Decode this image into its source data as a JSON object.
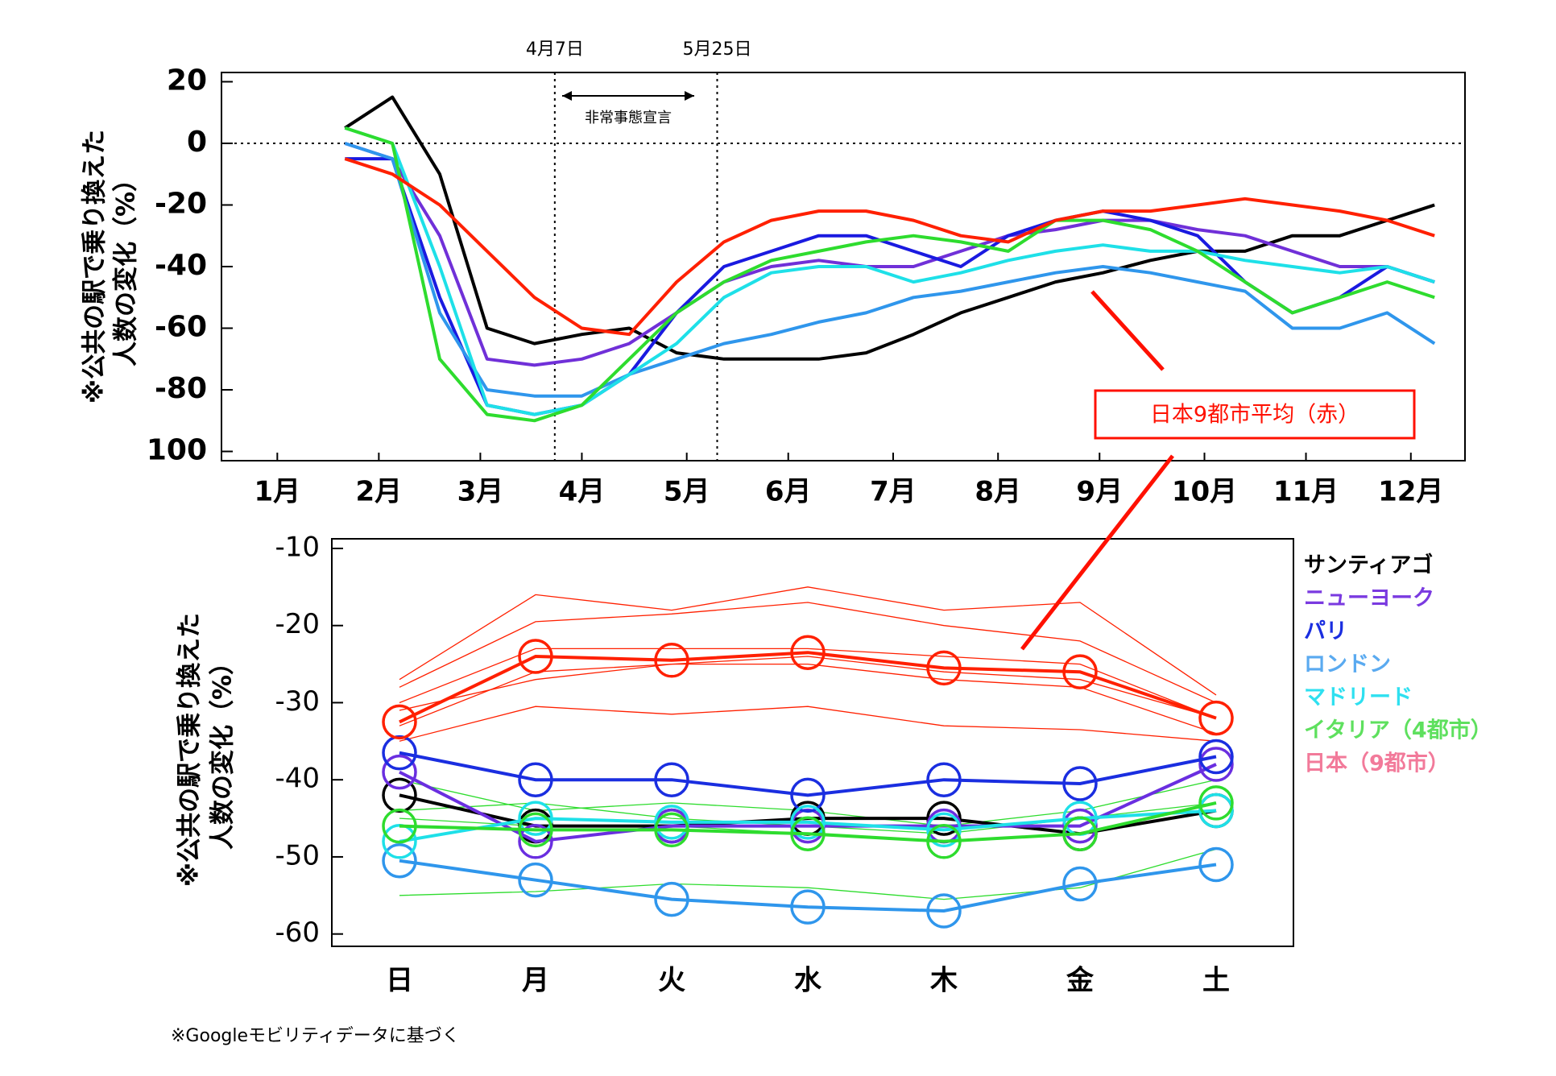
{
  "chart_data": [
    {
      "type": "line",
      "y_label": [
        "※公共の駅で乗り換えた",
        "人数の変化（%）"
      ],
      "xlim": [
        -1.5,
        366
      ],
      "xticks": [
        {
          "value": 15,
          "label": "1月"
        },
        {
          "value": 45,
          "label": "2月"
        },
        {
          "value": 75,
          "label": "3月"
        },
        {
          "value": 105,
          "label": "4月"
        },
        {
          "value": 136,
          "label": "5月"
        },
        {
          "value": 166,
          "label": "6月"
        },
        {
          "value": 197,
          "label": "7月"
        },
        {
          "value": 228,
          "label": "8月"
        },
        {
          "value": 258,
          "label": "9月"
        },
        {
          "value": 289,
          "label": "10月"
        },
        {
          "value": 319,
          "label": "11月"
        },
        {
          "value": 350,
          "label": "12月"
        }
      ],
      "ylim": [
        -103,
        23
      ],
      "yticks": [
        20,
        0,
        -20,
        -40,
        -60,
        -80,
        {
          "value": -100,
          "label": "100"
        }
      ],
      "reference_y": 0,
      "annotations": [
        {
          "text": "4月7日",
          "x": 97
        },
        {
          "text": "5月25日",
          "x": 145
        }
      ],
      "span_label": "非常事態宣言",
      "callout": "日本9都市平均（赤）",
      "x": [
        35,
        49,
        63,
        77,
        91,
        105,
        119,
        133,
        147,
        161,
        175,
        189,
        203,
        217,
        231,
        245,
        259,
        273,
        287,
        301,
        315,
        329,
        343,
        357
      ],
      "series": [
        {
          "color": "#000000",
          "values": [
            5,
            15,
            -10,
            -60,
            -65,
            -62,
            -60,
            -68,
            -70,
            -70,
            -70,
            -68,
            -62,
            -55,
            -50,
            -45,
            -42,
            -38,
            -35,
            -35,
            -30,
            -30,
            -25,
            -20
          ]
        },
        {
          "color": "#7030d8",
          "values": [
            0,
            -5,
            -30,
            -70,
            -72,
            -70,
            -65,
            -55,
            -45,
            -40,
            -38,
            -40,
            -40,
            -35,
            -30,
            -28,
            -25,
            -25,
            -28,
            -30,
            -35,
            -40,
            -40,
            -45
          ]
        },
        {
          "color": "#1a1ae0",
          "values": [
            -5,
            -5,
            -50,
            -85,
            -88,
            -85,
            -75,
            -55,
            -40,
            -35,
            -30,
            -30,
            -35,
            -40,
            -30,
            -25,
            -22,
            -25,
            -30,
            -45,
            -55,
            -50,
            -40,
            -45
          ]
        },
        {
          "color": "#2f96ec",
          "values": [
            0,
            -5,
            -55,
            -80,
            -82,
            -82,
            -75,
            -70,
            -65,
            -62,
            -58,
            -55,
            -50,
            -48,
            -45,
            -42,
            -40,
            -42,
            -45,
            -48,
            -60,
            -60,
            -55,
            -65
          ]
        },
        {
          "color": "#1ee0e8",
          "values": [
            5,
            0,
            -40,
            -85,
            -88,
            -85,
            -75,
            -65,
            -50,
            -42,
            -40,
            -40,
            -45,
            -42,
            -38,
            -35,
            -33,
            -35,
            -35,
            -38,
            -40,
            -42,
            -40,
            -45
          ]
        },
        {
          "color": "#2edc2e",
          "values": [
            5,
            0,
            -70,
            -88,
            -90,
            -85,
            -70,
            -55,
            -45,
            -38,
            -35,
            -32,
            -30,
            -32,
            -35,
            -25,
            -25,
            -28,
            -35,
            -45,
            -55,
            -50,
            -45,
            -50
          ]
        },
        {
          "color": "#ff2000",
          "values": [
            -5,
            -10,
            -20,
            -35,
            -50,
            -60,
            -62,
            -45,
            -32,
            -25,
            -22,
            -22,
            -25,
            -30,
            -32,
            -25,
            -22,
            -22,
            -20,
            -18,
            -20,
            -22,
            -25,
            -30
          ]
        }
      ]
    },
    {
      "type": "line",
      "y_label": [
        "※公共の駅で乗り換えた",
        "人数の変化（%）"
      ],
      "categories": [
        "日",
        "月",
        "火",
        "水",
        "木",
        "金",
        "土"
      ],
      "ylim": [
        -61.6,
        -8.75
      ],
      "yticks": [
        -10,
        -20,
        -30,
        -40,
        -50,
        -60
      ],
      "footnote": "※Googleモビリティデータに基づく",
      "series": [
        {
          "name": "サンティアゴ",
          "color": "#000000",
          "legend_color": "#000000",
          "values": [
            -42,
            -46,
            -46,
            -45,
            -45,
            -47,
            -44
          ]
        },
        {
          "name": "ニューヨーク",
          "color": "#6a2ee0",
          "legend_color": "#7a3ae0",
          "values": [
            -39,
            -48,
            -46,
            -46,
            -46,
            -46,
            -38
          ]
        },
        {
          "name": "パリ",
          "color": "#1a2ee0",
          "legend_color": "#1a2ee0",
          "values": [
            -36.5,
            -40,
            -40,
            -42,
            -40,
            -40.5,
            -37
          ]
        },
        {
          "name": "ロンドン",
          "color": "#2f96ec",
          "legend_color": "#5aaaf0",
          "values": [
            -50.5,
            -53,
            -55.5,
            -56.5,
            -57,
            -53.5,
            -51
          ]
        },
        {
          "name": "マドリード",
          "color": "#1ee0e8",
          "legend_color": "#2ee0f0",
          "values": [
            -48,
            -45,
            -45.5,
            -45.5,
            -46.5,
            -45,
            -44
          ]
        },
        {
          "name": "イタリア（4都市）",
          "color": "#2edc2e",
          "legend_color": "#5ee05e",
          "values": [
            -46,
            -46.5,
            -46.5,
            -47,
            -48,
            -47,
            -43
          ],
          "members": [
            [
              -40,
              -44,
              -43,
              -44,
              -46,
              -44,
              -40
            ],
            [
              -55,
              -54.5,
              -53.5,
              -54,
              -55.5,
              -54,
              -49
            ],
            [
              -45,
              -46,
              -46,
              -47,
              -48,
              -47,
              -44
            ],
            [
              -44,
              -43,
              -45,
              -46,
              -47,
              -45,
              -43
            ]
          ]
        },
        {
          "name": "日本（9都市）",
          "color": "#ff2000",
          "legend_color": "#f27a9a",
          "values": [
            -32.5,
            -24,
            -24.5,
            -23.5,
            -25.5,
            -26,
            -32
          ],
          "members": [
            [
              -27,
              -16,
              -18,
              -15,
              -18,
              -17,
              -29
            ],
            [
              -28,
              -19.5,
              -18.5,
              -17,
              -20,
              -22,
              -30
            ],
            [
              -30,
              -23,
              -23,
              -23,
              -24,
              -25,
              -32
            ],
            [
              -31,
              -27,
              -25,
              -25,
              -27,
              -28,
              -34
            ],
            [
              -35,
              -30.5,
              -31.5,
              -30.5,
              -33,
              -33.5,
              -35
            ],
            [
              -33,
              -26,
              -25,
              -24,
              -26,
              -27,
              -32
            ]
          ]
        }
      ]
    }
  ]
}
